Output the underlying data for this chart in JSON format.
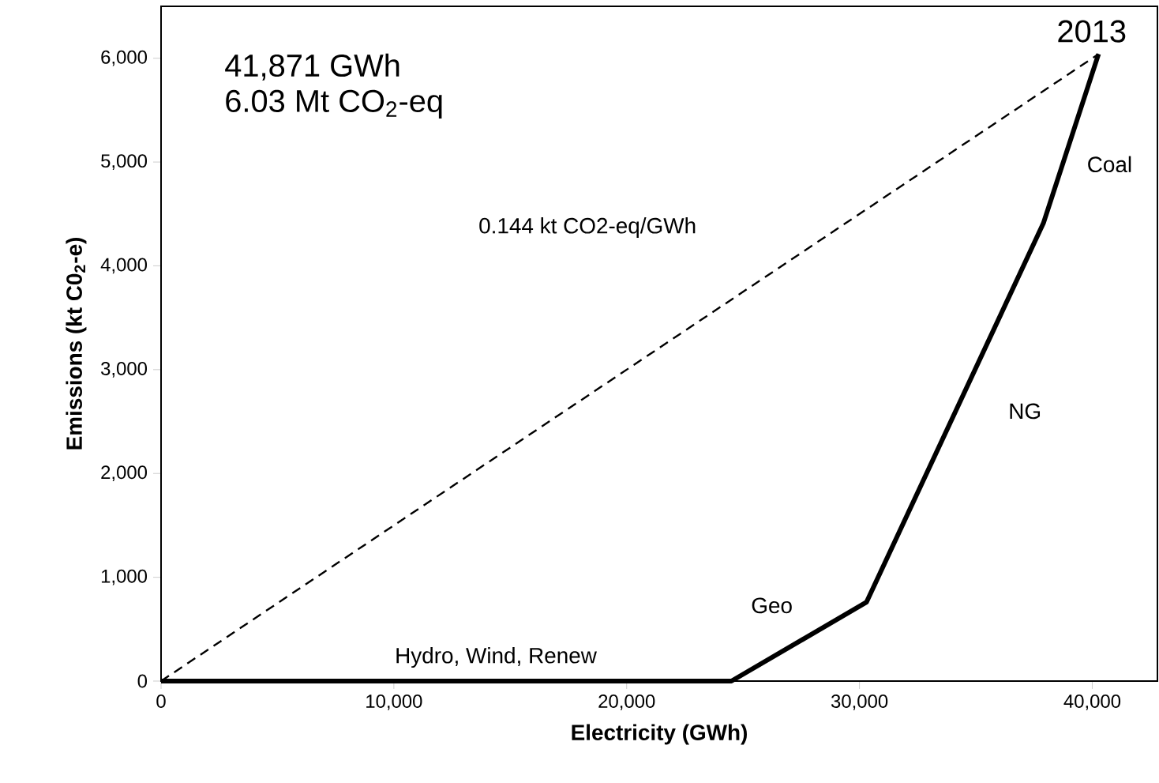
{
  "chart_data": {
    "type": "line",
    "xlabel": "Electricity (GWh)",
    "ylabel": "Emissions (kt C0$_{2}$-e)",
    "xlim": [
      0,
      42800
    ],
    "ylim": [
      0,
      6500
    ],
    "xticks": [
      0,
      {
        "value": 10000,
        "label": "10,000"
      },
      {
        "value": 20000,
        "label": "20,000"
      },
      {
        "value": 30000,
        "label": "30,000"
      },
      {
        "value": 40000,
        "label": "40,000"
      }
    ],
    "yticks": [
      0,
      {
        "value": 1000,
        "label": "1,000"
      },
      {
        "value": 2000,
        "label": "2,000"
      },
      {
        "value": 3000,
        "label": "3,000"
      },
      {
        "value": 4000,
        "label": "4,000"
      },
      {
        "value": 5000,
        "label": "5,000"
      },
      {
        "value": 6000,
        "label": "6,000"
      }
    ],
    "series": [
      {
        "color": "#000000",
        "line_style": "solid",
        "x": [
          0,
          24500,
          30300,
          37900,
          40270
        ],
        "values": [
          0,
          0,
          760,
          4410,
          6040
        ]
      },
      {
        "color": "#000000",
        "line_style": "dashed",
        "x": [
          0,
          40270
        ],
        "values": [
          0,
          6040
        ]
      }
    ],
    "annotations": [
      "41,871 GWh",
      "6.03 Mt CO$_{2}$-eq",
      "2013",
      "Coal",
      "NG",
      "Geo",
      "Hydro, Wind, Renew",
      "0.144 kt CO2-eq/GWh"
    ]
  }
}
